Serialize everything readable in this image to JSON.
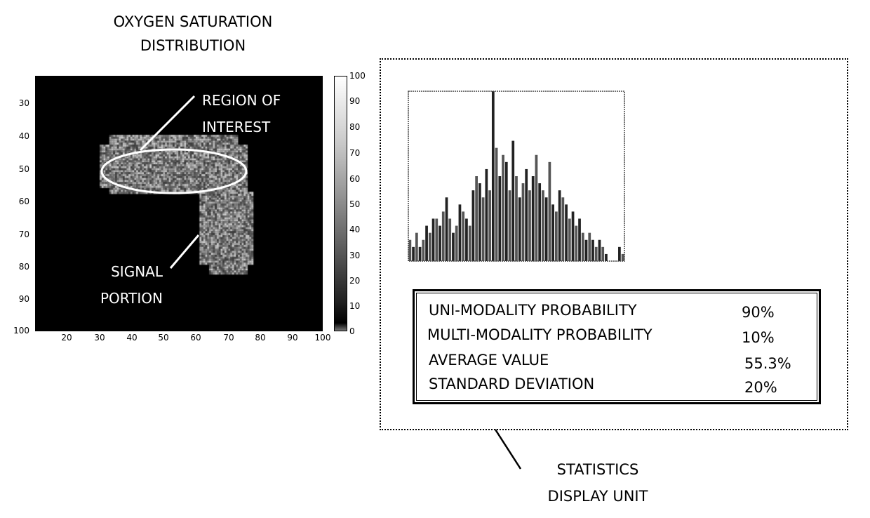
{
  "figure_title_line1": "OXYGEN SATURATION",
  "figure_title_line2": "DISTRIBUTION",
  "heatmap": {
    "y_ticks": [
      "30",
      "40",
      "50",
      "60",
      "70",
      "80",
      "90",
      "100"
    ],
    "x_ticks": [
      "20",
      "30",
      "40",
      "50",
      "60",
      "70",
      "80",
      "90",
      "100"
    ],
    "colorbar_ticks": [
      "100",
      "90",
      "80",
      "70",
      "60",
      "50",
      "40",
      "30",
      "20",
      "10",
      "0"
    ],
    "annotation_roi_line1": "REGION OF",
    "annotation_roi_line2": "INTEREST",
    "annotation_signal_line1": "SIGNAL",
    "annotation_signal_line2": "PORTION"
  },
  "chart_data": {
    "type": "bar",
    "title": "",
    "xlabel": "",
    "ylabel": "",
    "ylim": [
      0,
      24
    ],
    "values": [
      3,
      2,
      4,
      2,
      3,
      5,
      4,
      6,
      6,
      5,
      7,
      9,
      6,
      4,
      5,
      8,
      7,
      6,
      5,
      10,
      12,
      11,
      9,
      13,
      10,
      24,
      16,
      12,
      15,
      14,
      10,
      17,
      12,
      9,
      11,
      13,
      10,
      12,
      15,
      11,
      10,
      9,
      14,
      8,
      7,
      10,
      9,
      8,
      6,
      7,
      5,
      6,
      4,
      3,
      4,
      3,
      2,
      3,
      2,
      1,
      0,
      0,
      0,
      2,
      1
    ]
  },
  "stats": {
    "rows": [
      {
        "label": "UNI-MODALITY PROBABILITY",
        "value": "90%"
      },
      {
        "label": "MULTI-MODALITY PROBABILITY",
        "value": "10%"
      },
      {
        "label": "AVERAGE VALUE",
        "value": "55.3%"
      },
      {
        "label": "STANDARD DEVIATION",
        "value": "20%"
      }
    ]
  },
  "caption_line1": "STATISTICS",
  "caption_line2": "DISPLAY UNIT"
}
